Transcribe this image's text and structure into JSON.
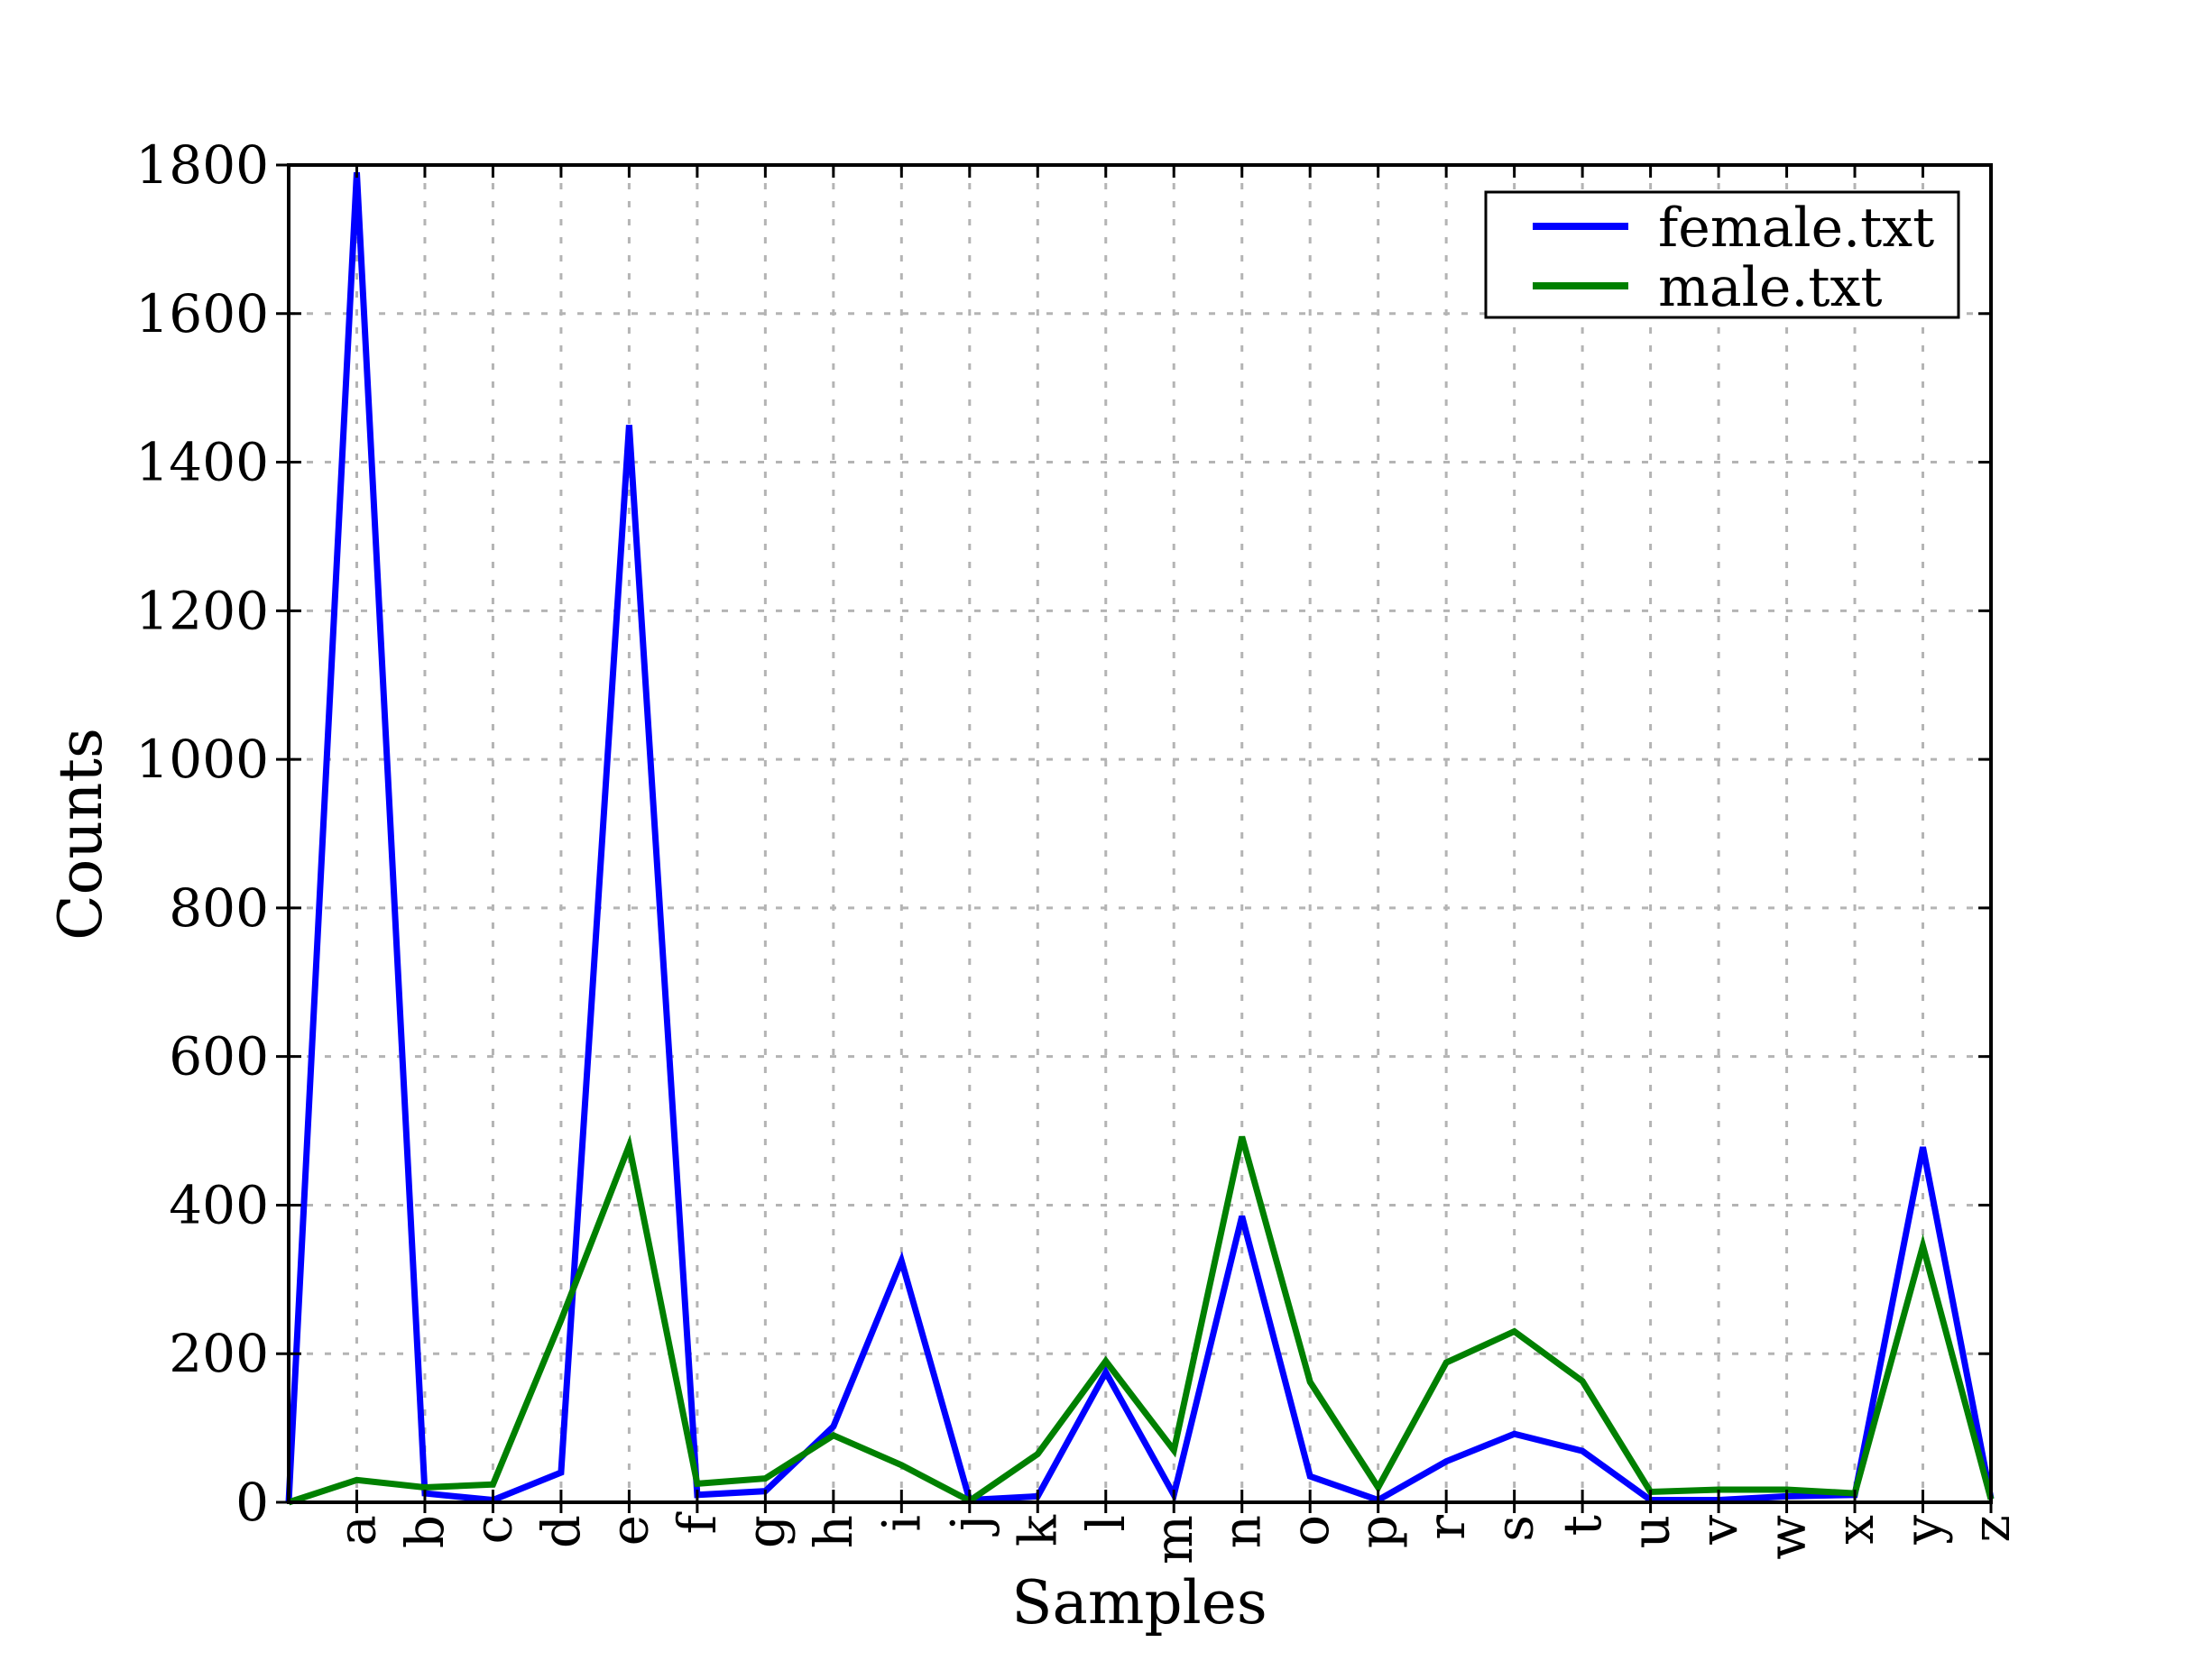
{
  "figure": {
    "background": "#ffffff",
    "grid_color": "#b4b4b4",
    "spine_color": "#000000"
  },
  "axes": {
    "xlabel": "Samples",
    "ylabel": "Counts"
  },
  "legend": {
    "position": "upper-right",
    "entries": [
      {
        "label": "female.txt",
        "color": "#0000ff"
      },
      {
        "label": "male.txt",
        "color": "#008000"
      }
    ]
  },
  "chart_data": {
    "type": "line",
    "title": "",
    "xlabel": "Samples",
    "ylabel": "Counts",
    "categories": [
      "a",
      "b",
      "c",
      "d",
      "e",
      "f",
      "g",
      "h",
      "i",
      "j",
      "k",
      "l",
      "m",
      "n",
      "o",
      "p",
      "r",
      "s",
      "t",
      "u",
      "v",
      "w",
      "x",
      "y",
      "z"
    ],
    "series": [
      {
        "name": "female.txt",
        "color": "#0000ff",
        "values": [
          1790,
          12,
          3,
          40,
          1450,
          10,
          15,
          102,
          325,
          3,
          8,
          175,
          10,
          385,
          35,
          3,
          55,
          92,
          69,
          3,
          3,
          8,
          10,
          478,
          5
        ]
      },
      {
        "name": "male.txt",
        "color": "#008000",
        "values": [
          30,
          20,
          24,
          245,
          480,
          25,
          32,
          90,
          50,
          2,
          65,
          190,
          70,
          492,
          162,
          20,
          188,
          230,
          163,
          14,
          17,
          17,
          12,
          345,
          4
        ]
      }
    ],
    "line_starts_at_origin": true,
    "ylim": [
      0,
      1800
    ],
    "yticks": [
      0,
      200,
      400,
      600,
      800,
      1000,
      1200,
      1400,
      1600,
      1800
    ],
    "grid": "dashed",
    "legend_position": "upper-right",
    "note_missing_sample": "q"
  }
}
